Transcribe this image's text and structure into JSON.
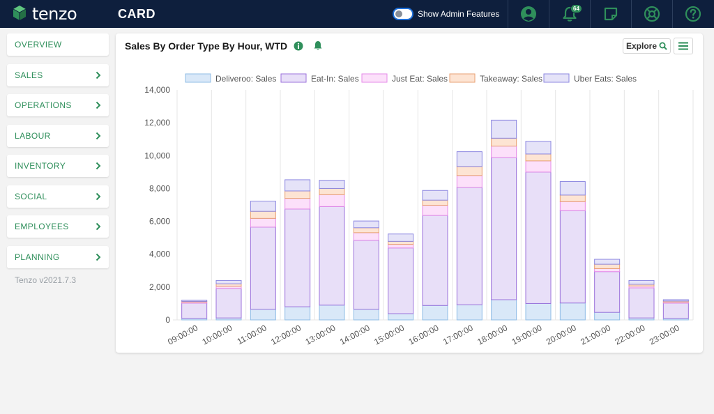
{
  "app": {
    "logo_text": "tenzo",
    "page_title": "CARD",
    "admin_toggle_label": "Show Admin Features",
    "notification_count": "64"
  },
  "sidebar": {
    "items": [
      {
        "label": "OVERVIEW",
        "has_chevron": false
      },
      {
        "label": "SALES",
        "has_chevron": true
      },
      {
        "label": "OPERATIONS",
        "has_chevron": true
      },
      {
        "label": "LABOUR",
        "has_chevron": true
      },
      {
        "label": "INVENTORY",
        "has_chevron": true
      },
      {
        "label": "SOCIAL",
        "has_chevron": true
      },
      {
        "label": "EMPLOYEES",
        "has_chevron": true
      },
      {
        "label": "PLANNING",
        "has_chevron": true
      }
    ],
    "version": "Tenzo v2021.7.3"
  },
  "card": {
    "title": "Sales By Order Type By Hour, WTD",
    "explore_label": "Explore"
  },
  "colors": {
    "topbar": "#0e1f3d",
    "brand_green": "#2f8f5b"
  },
  "chart_data": {
    "type": "bar",
    "stacked": true,
    "categories": [
      "09:00:00",
      "10:00:00",
      "11:00:00",
      "12:00:00",
      "13:00:00",
      "14:00:00",
      "15:00:00",
      "16:00:00",
      "17:00:00",
      "18:00:00",
      "19:00:00",
      "20:00:00",
      "21:00:00",
      "22:00:00",
      "23:00:00"
    ],
    "series": [
      {
        "name": "Deliveroo: Sales",
        "fill": "#d9e8f8",
        "stroke": "#8fbce6",
        "values": [
          100,
          120,
          650,
          800,
          900,
          650,
          380,
          880,
          920,
          1230,
          1000,
          1030,
          460,
          120,
          100
        ]
      },
      {
        "name": "Eat-In: Sales",
        "fill": "#e8dff8",
        "stroke": "#9b72db",
        "values": [
          920,
          1800,
          5000,
          5950,
          6000,
          4200,
          4000,
          5480,
          7150,
          8650,
          8000,
          5620,
          2480,
          1830,
          920
        ]
      },
      {
        "name": "Just Eat: Sales",
        "fill": "#fce0fa",
        "stroke": "#e58ae8",
        "values": [
          70,
          130,
          530,
          650,
          720,
          460,
          220,
          620,
          720,
          700,
          680,
          550,
          180,
          120,
          70
        ]
      },
      {
        "name": "Takeaway: Sales",
        "fill": "#fde4d3",
        "stroke": "#e8a173",
        "values": [
          40,
          150,
          430,
          450,
          380,
          300,
          180,
          310,
          550,
          480,
          420,
          400,
          270,
          100,
          60
        ]
      },
      {
        "name": "Uber Eats: Sales",
        "fill": "#e5e3f8",
        "stroke": "#8c87e0",
        "values": [
          70,
          200,
          620,
          680,
          500,
          410,
          450,
          590,
          900,
          1100,
          770,
          820,
          300,
          230,
          80
        ]
      }
    ],
    "ylim": [
      0,
      14000
    ],
    "yticks": [
      "0",
      "2,000",
      "4,000",
      "6,000",
      "8,000",
      "10,000",
      "12,000",
      "14,000"
    ],
    "legend_position": "top",
    "grid": "vertical"
  }
}
